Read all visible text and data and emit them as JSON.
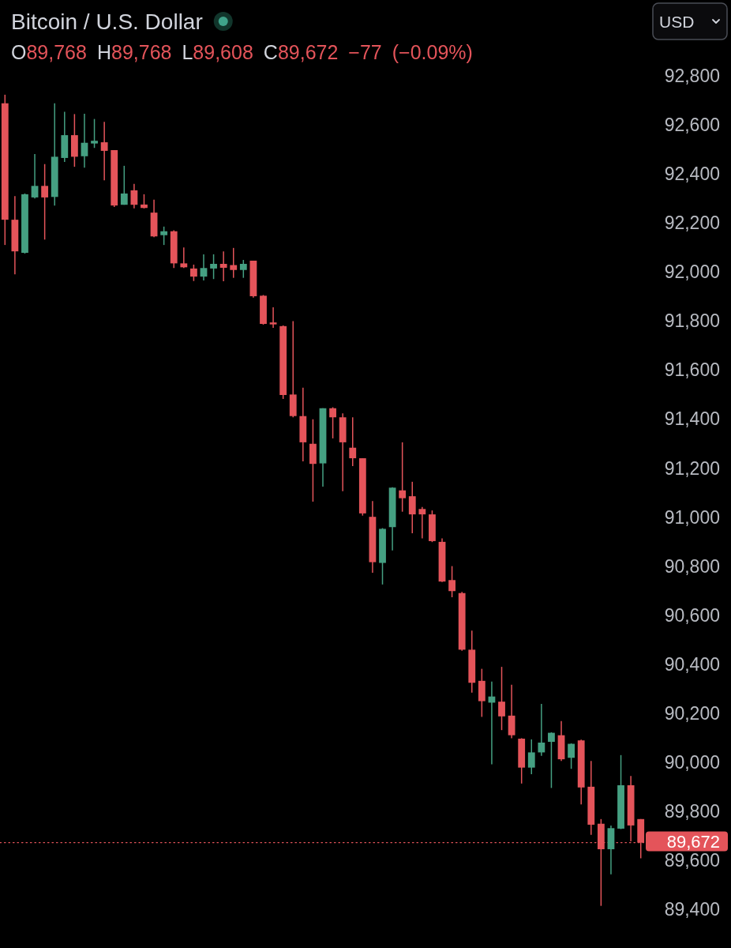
{
  "chart_data": {
    "type": "candlestick",
    "title": "Bitcoin / U.S. Dollar",
    "subtitle": "O89,768 H89,768 L89,608 C89,672 −77 (−0.09%)",
    "annotations": [
      "USD"
    ],
    "categories": [
      null,
      null,
      null,
      null,
      null,
      null,
      null,
      null,
      null,
      null,
      null,
      null,
      null,
      null,
      null,
      null,
      null,
      null,
      null,
      null,
      null,
      null,
      null,
      null,
      null,
      null,
      null,
      null,
      null,
      null,
      null,
      null,
      null,
      null,
      null,
      null,
      null,
      null,
      null,
      null,
      null,
      null,
      null,
      null,
      null,
      null,
      null,
      null,
      null,
      null,
      null,
      null,
      null,
      null,
      null,
      null,
      null,
      null,
      null,
      null,
      null,
      null,
      null,
      null,
      null
    ],
    "ohlc": [
      [
        92688,
        92723,
        92110,
        92213
      ],
      [
        92213,
        92309,
        91990,
        92084
      ],
      [
        92078,
        92320,
        92075,
        92317
      ],
      [
        92304,
        92481,
        92300,
        92351
      ],
      [
        92351,
        92440,
        92132,
        92304
      ],
      [
        92306,
        92688,
        92271,
        92470
      ],
      [
        92465,
        92653,
        92449,
        92558
      ],
      [
        92558,
        92644,
        92429,
        92470
      ],
      [
        92472,
        92645,
        92425,
        92527
      ],
      [
        92524,
        92624,
        92506,
        92535
      ],
      [
        92529,
        92612,
        92374,
        92494
      ],
      [
        92497,
        92497,
        92265,
        92271
      ],
      [
        92274,
        92433,
        92274,
        92320
      ],
      [
        92333,
        92359,
        92259,
        92274
      ],
      [
        92275,
        92317,
        92259,
        92261
      ],
      [
        92242,
        92295,
        92142,
        92145
      ],
      [
        92150,
        92185,
        92110,
        92166
      ],
      [
        92166,
        92170,
        92016,
        92035
      ],
      [
        92035,
        92100,
        92016,
        92019
      ],
      [
        92014,
        92030,
        91963,
        91981
      ],
      [
        91981,
        92072,
        91965,
        92016
      ],
      [
        92014,
        92072,
        91971,
        92033
      ],
      [
        92033,
        92084,
        91962,
        92017
      ],
      [
        92028,
        92098,
        91976,
        92008
      ],
      [
        92008,
        92049,
        91976,
        92033
      ],
      [
        92046,
        92046,
        91895,
        91901
      ],
      [
        91903,
        91906,
        91785,
        91788
      ],
      [
        91794,
        91856,
        91772,
        91786
      ],
      [
        91779,
        91782,
        91482,
        91498
      ],
      [
        91500,
        91799,
        91407,
        91412
      ],
      [
        91412,
        91528,
        91227,
        91305
      ],
      [
        91299,
        91399,
        91063,
        91217
      ],
      [
        91219,
        91444,
        91124,
        91444
      ],
      [
        91444,
        91448,
        91321,
        91407
      ],
      [
        91407,
        91423,
        91106,
        91305
      ],
      [
        91283,
        91407,
        91208,
        91240
      ],
      [
        91240,
        91240,
        91006,
        91015
      ],
      [
        91001,
        91065,
        90773,
        90816
      ],
      [
        90813,
        90955,
        90725,
        90952
      ],
      [
        90959,
        91122,
        90864,
        91120
      ],
      [
        91109,
        91305,
        91022,
        91077
      ],
      [
        91085,
        91144,
        90934,
        91011
      ],
      [
        91033,
        91041,
        90913,
        91011
      ],
      [
        91011,
        91027,
        90898,
        90902
      ],
      [
        90899,
        90913,
        90735,
        90737
      ],
      [
        90743,
        90800,
        90673,
        90698
      ],
      [
        90690,
        90695,
        90455,
        90459
      ],
      [
        90459,
        90537,
        90284,
        90324
      ],
      [
        90332,
        90381,
        90185,
        90249
      ],
      [
        90243,
        90329,
        89991,
        90268
      ],
      [
        90247,
        90389,
        90131,
        90187
      ],
      [
        90190,
        90316,
        90098,
        90110
      ],
      [
        90096,
        90098,
        89913,
        89978
      ],
      [
        89978,
        90093,
        89951,
        90040
      ],
      [
        90040,
        90238,
        90026,
        90080
      ],
      [
        90083,
        90122,
        89895,
        90120
      ],
      [
        90110,
        90168,
        90005,
        90012
      ],
      [
        90018,
        90077,
        89973,
        90075
      ],
      [
        90089,
        90092,
        89828,
        89897
      ],
      [
        89900,
        90005,
        89704,
        89745
      ],
      [
        89749,
        89768,
        89414,
        89645
      ],
      [
        89645,
        89742,
        89543,
        89731
      ],
      [
        89729,
        90029,
        89727,
        89906
      ],
      [
        89906,
        89944,
        89677,
        89742
      ],
      [
        89768,
        89768,
        89608,
        89672
      ]
    ],
    "colors": [
      "#e4545a",
      "#e4545a",
      "#45a082",
      "#45a082",
      "#e4545a",
      "#45a082",
      "#45a082",
      "#e4545a",
      "#45a082",
      "#45a082",
      "#e4545a",
      "#e4545a",
      "#45a082",
      "#e4545a",
      "#e4545a",
      "#e4545a",
      "#45a082",
      "#e4545a",
      "#e4545a",
      "#e4545a",
      "#45a082",
      "#45a082",
      "#e4545a",
      "#e4545a",
      "#45a082",
      "#e4545a",
      "#e4545a",
      "#e4545a",
      "#e4545a",
      "#e4545a",
      "#e4545a",
      "#e4545a",
      "#45a082",
      "#e4545a",
      "#e4545a",
      "#e4545a",
      "#e4545a",
      "#e4545a",
      "#45a082",
      "#45a082",
      "#e4545a",
      "#e4545a",
      "#e4545a",
      "#e4545a",
      "#e4545a",
      "#e4545a",
      "#e4545a",
      "#e4545a",
      "#e4545a",
      "#45a082",
      "#e4545a",
      "#e4545a",
      "#e4545a",
      "#45a082",
      "#45a082",
      "#45a082",
      "#e4545a",
      "#45a082",
      "#e4545a",
      "#e4545a",
      "#e4545a",
      "#45a082",
      "#45a082",
      "#e4545a",
      "#e4545a"
    ],
    "ylim": [
      89400,
      92800
    ],
    "yticks": [
      {
        "value": 89400,
        "label": "89,400"
      },
      {
        "value": 89600,
        "label": "89,600"
      },
      {
        "value": 89800,
        "label": "89,800"
      },
      {
        "value": 90000,
        "label": "90,000"
      },
      {
        "value": 90200,
        "label": "90,200"
      },
      {
        "value": 90400,
        "label": "90,400"
      },
      {
        "value": 90600,
        "label": "90,600"
      },
      {
        "value": 90800,
        "label": "90,800"
      },
      {
        "value": 91000,
        "label": "91,000"
      },
      {
        "value": 91200,
        "label": "91,200"
      },
      {
        "value": 91400,
        "label": "91,400"
      },
      {
        "value": 91600,
        "label": "91,600"
      },
      {
        "value": 91800,
        "label": "91,800"
      },
      {
        "value": 92000,
        "label": "92,000"
      },
      {
        "value": 92200,
        "label": "92,200"
      },
      {
        "value": 92400,
        "label": "92,400"
      },
      {
        "value": 92600,
        "label": "92,600"
      },
      {
        "value": 92800,
        "label": "92,800"
      }
    ],
    "tick_labels": "y",
    "ref_lines": [
      {
        "axis": "y",
        "value": 89672,
        "label": "89,672",
        "color": "#e4545a",
        "line_style": "dotted"
      }
    ]
  }
}
